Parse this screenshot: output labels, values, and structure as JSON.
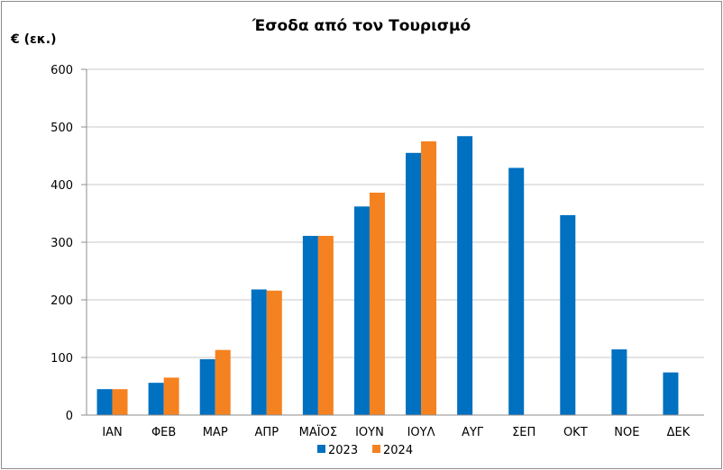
{
  "chart_data": {
    "type": "bar",
    "title": "Έσοδα από τον Τουρισμό",
    "ylabel": "€ (εκ.)",
    "xlabel": "",
    "categories": [
      "ΙΑΝ",
      "ΦΕΒ",
      "ΜΑΡ",
      "ΑΠΡ",
      "ΜΑΪΟΣ",
      "ΙΟΥΝ",
      "ΙΟΥΛ",
      "ΑΥΓ",
      "ΣΕΠ",
      "ΟΚΤ",
      "ΝΟΕ",
      "ΔΕΚ"
    ],
    "series": [
      {
        "name": "2023",
        "color": "#0070C0",
        "values": [
          45,
          56,
          97,
          218,
          311,
          362,
          455,
          484,
          429,
          347,
          114,
          74
        ]
      },
      {
        "name": "2024",
        "color": "#F58220",
        "values": [
          45,
          65,
          113,
          216,
          311,
          386,
          475,
          null,
          null,
          null,
          null,
          null
        ]
      }
    ],
    "ylim": [
      0,
      600
    ],
    "yticks": [
      0,
      100,
      200,
      300,
      400,
      500,
      600
    ],
    "grid": true,
    "legend": "bottom"
  }
}
